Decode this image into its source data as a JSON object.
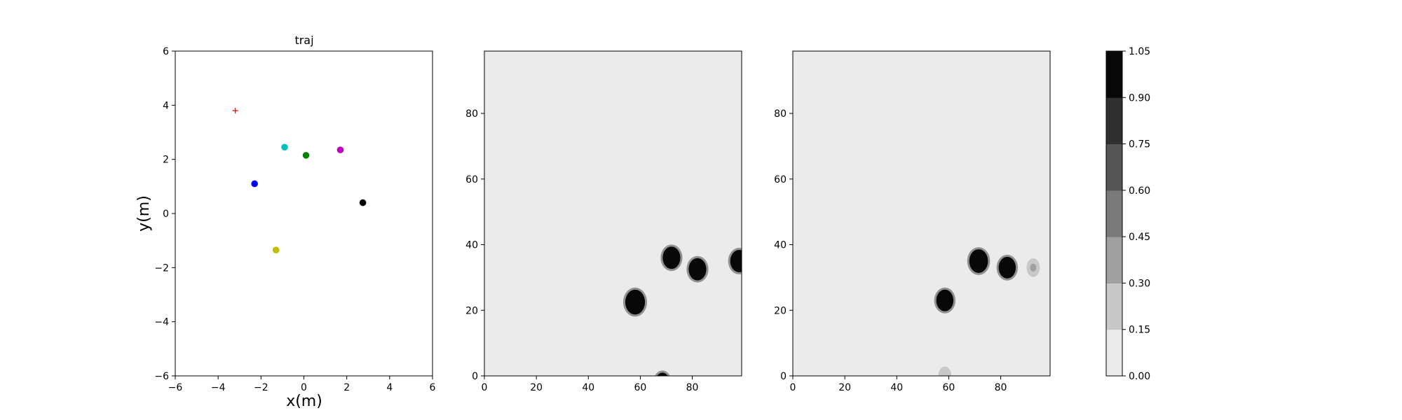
{
  "chart_data": [
    {
      "type": "scatter",
      "title": "traj",
      "xlabel": "x(m)",
      "ylabel": "y(m)",
      "xlim": [
        -6,
        6
      ],
      "ylim": [
        -6,
        6
      ],
      "xticks": [
        "−6",
        "−4",
        "−2",
        "0",
        "2",
        "4",
        "6"
      ],
      "yticks": [
        "−6",
        "−4",
        "−2",
        "0",
        "2",
        "4",
        "6"
      ],
      "grid": false,
      "points": [
        {
          "x": -3.2,
          "y": 3.8,
          "marker": "plus",
          "color": "#ff0000"
        },
        {
          "x": -0.9,
          "y": 2.45,
          "marker": "circle",
          "color": "#00bfbf"
        },
        {
          "x": 0.1,
          "y": 2.15,
          "marker": "circle",
          "color": "#008000"
        },
        {
          "x": 1.7,
          "y": 2.35,
          "marker": "circle",
          "color": "#bf00bf"
        },
        {
          "x": -2.3,
          "y": 1.1,
          "marker": "circle",
          "color": "#0000ff"
        },
        {
          "x": 2.75,
          "y": 0.4,
          "marker": "circle",
          "color": "#000000"
        },
        {
          "x": -1.3,
          "y": -1.35,
          "marker": "circle",
          "color": "#bfbf00"
        }
      ]
    },
    {
      "type": "heatmap",
      "title": "",
      "xlim": [
        0,
        99
      ],
      "ylim": [
        0,
        99
      ],
      "xticks": [
        "0",
        "20",
        "40",
        "60",
        "80"
      ],
      "yticks": [
        "0",
        "20",
        "40",
        "60",
        "80"
      ],
      "background_level": 0.0,
      "blobs": [
        {
          "x": 58,
          "y": 22.5,
          "r": 3.8,
          "value": 1.0
        },
        {
          "x": 72,
          "y": 36,
          "r": 3.4,
          "value": 1.0
        },
        {
          "x": 82,
          "y": 32.5,
          "r": 3.4,
          "value": 1.0
        },
        {
          "x": 98,
          "y": 35,
          "r": 3.4,
          "value": 1.0
        },
        {
          "x": 68.5,
          "y": -1.5,
          "r": 2.5,
          "value": 1.0
        }
      ]
    },
    {
      "type": "heatmap",
      "title": "",
      "xlim": [
        0,
        99
      ],
      "ylim": [
        0,
        99
      ],
      "xticks": [
        "0",
        "20",
        "40",
        "60",
        "80"
      ],
      "yticks": [
        "0",
        "20",
        "40",
        "60",
        "80"
      ],
      "background_level": 0.0,
      "blobs": [
        {
          "x": 58.5,
          "y": 23,
          "r": 3.3,
          "value": 1.0
        },
        {
          "x": 71.5,
          "y": 35,
          "r": 3.6,
          "value": 1.0
        },
        {
          "x": 82.5,
          "y": 33,
          "r": 3.3,
          "value": 1.0
        },
        {
          "x": 92.5,
          "y": 33,
          "r": 2.0,
          "value": 0.35
        },
        {
          "x": 58.5,
          "y": 0,
          "r": 2.0,
          "value": 0.2
        }
      ]
    }
  ],
  "colorbar": {
    "ticks": [
      "0.00",
      "0.15",
      "0.30",
      "0.45",
      "0.60",
      "0.75",
      "0.90",
      "1.05"
    ],
    "levels": [
      0.0,
      0.15,
      0.3,
      0.45,
      0.6,
      0.75,
      0.9,
      1.05
    ],
    "colors": [
      "#ebebeb",
      "#c8c8c8",
      "#a0a0a0",
      "#7a7a7a",
      "#555555",
      "#2f2f2f",
      "#080808"
    ]
  }
}
